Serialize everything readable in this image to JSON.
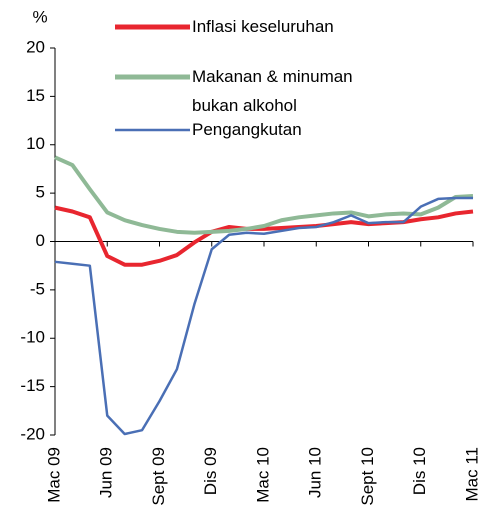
{
  "chart_data": {
    "type": "line",
    "y_label": "%",
    "categories": [
      "Mac 09",
      null,
      null,
      "Jun 09",
      null,
      null,
      "Sept 09",
      null,
      null,
      "Dis 09",
      null,
      null,
      "Mac 10",
      null,
      null,
      "Jun 10",
      null,
      null,
      "Sept 10",
      null,
      null,
      "Dis 10",
      null,
      null,
      "Mac 11"
    ],
    "series": [
      {
        "name": "Inflasi keseluruhan",
        "color": "#e8262f",
        "values": [
          3.5,
          3.1,
          2.5,
          -1.5,
          -2.4,
          -2.4,
          -2.0,
          -1.4,
          -0.1,
          1.0,
          1.5,
          1.3,
          1.3,
          1.4,
          1.5,
          1.6,
          1.8,
          2.0,
          1.8,
          1.9,
          2.0,
          2.3,
          2.5,
          2.9,
          3.1
        ]
      },
      {
        "name": "Makanan & minuman bukan alkohol",
        "color": "#8fb996",
        "values": [
          8.7,
          7.9,
          5.4,
          3.0,
          2.2,
          1.7,
          1.3,
          1.0,
          0.9,
          1.0,
          1.1,
          1.3,
          1.6,
          2.2,
          2.5,
          2.7,
          2.9,
          3.0,
          2.6,
          2.8,
          2.9,
          2.8,
          3.5,
          4.6,
          4.7
        ]
      },
      {
        "name": "Pengangkutan",
        "color": "#4a6fb5",
        "values": [
          -2.1,
          -2.3,
          -2.5,
          -18,
          -19.9,
          -19.5,
          -16.5,
          -13.2,
          -6.5,
          -0.8,
          0.7,
          0.9,
          0.8,
          1.1,
          1.4,
          1.5,
          2.0,
          2.7,
          1.9,
          2.0,
          2.0,
          3.6,
          4.4,
          4.5,
          4.5
        ]
      }
    ],
    "ylim": [
      -20,
      20
    ],
    "yticks": [
      -20,
      -15,
      -10,
      -5,
      0,
      5,
      10,
      15,
      20
    ]
  }
}
